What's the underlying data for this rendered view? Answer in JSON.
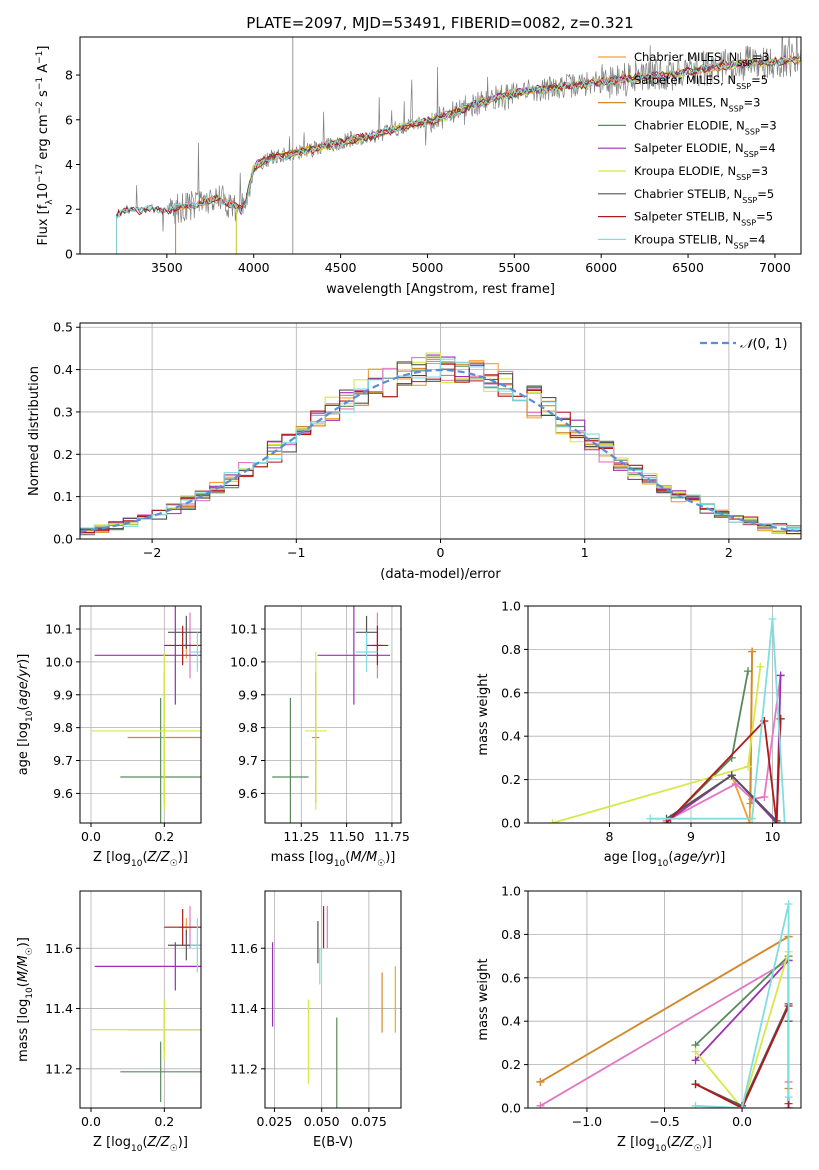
{
  "title": "PLATE=2097, MJD=53491, FIBERID=0082, z=0.321",
  "colors": {
    "Chabrier MILES": "#f0a030",
    "Salpeter MILES": "#e377c2",
    "Kroupa MILES": "#d08a30",
    "Chabrier ELODIE": "#5a8a5a",
    "Salpeter ELODIE": "#9b30b0",
    "Kroupa ELODIE": "#d6e84a",
    "Chabrier STELIB": "#555555",
    "Salpeter STELIB": "#b01a1a",
    "Kroupa STELIB": "#80dde0",
    "data": "#808080",
    "gauss": "#5b8dd8"
  },
  "chart_data": [
    {
      "id": "spectrum",
      "type": "line",
      "xlabel": "wavelength [Angstrom, rest frame]",
      "ylabel": "Flux [f_λ 10^-17 erg cm^-2 s^-1 A^-1]",
      "xlim": [
        3000,
        7150
      ],
      "ylim": [
        0,
        9.7
      ],
      "xticks": [
        3500,
        4000,
        4500,
        5000,
        5500,
        6000,
        6500,
        7000
      ],
      "yticks": [
        0,
        2,
        4,
        6,
        8
      ],
      "legend_position": "upper right",
      "legend": [
        {
          "label": "Chabrier MILES, N_SSP=3",
          "model": "Chabrier MILES"
        },
        {
          "label": "Salpeter MILES, N_SSP=5",
          "model": "Salpeter MILES"
        },
        {
          "label": "Kroupa MILES, N_SSP=3",
          "model": "Kroupa MILES"
        },
        {
          "label": "Chabrier ELODIE, N_SSP=3",
          "model": "Chabrier ELODIE"
        },
        {
          "label": "Salpeter ELODIE, N_SSP=4",
          "model": "Salpeter ELODIE"
        },
        {
          "label": "Kroupa ELODIE, N_SSP=3",
          "model": "Kroupa ELODIE"
        },
        {
          "label": "Chabrier STELIB, N_SSP=5",
          "model": "Chabrier STELIB"
        },
        {
          "label": "Salpeter STELIB, N_SSP=5",
          "model": "Salpeter STELIB"
        },
        {
          "label": "Kroupa STELIB, N_SSP=4",
          "model": "Kroupa STELIB"
        }
      ],
      "continuum": [
        [
          3210,
          1.7
        ],
        [
          3260,
          1.95
        ],
        [
          3400,
          2.0
        ],
        [
          3500,
          1.95
        ],
        [
          3560,
          2.05
        ],
        [
          3700,
          2.3
        ],
        [
          3800,
          2.5
        ],
        [
          3930,
          2.0
        ],
        [
          3960,
          2.5
        ],
        [
          4000,
          3.9
        ],
        [
          4100,
          4.3
        ],
        [
          4300,
          4.6
        ],
        [
          4500,
          5.0
        ],
        [
          4700,
          5.3
        ],
        [
          4900,
          5.8
        ],
        [
          5050,
          6.0
        ],
        [
          5150,
          6.3
        ],
        [
          5200,
          6.5
        ],
        [
          5400,
          7.0
        ],
        [
          5600,
          7.3
        ],
        [
          5800,
          7.5
        ],
        [
          6000,
          7.7
        ],
        [
          6200,
          7.9
        ],
        [
          6400,
          8.0
        ],
        [
          6600,
          8.3
        ],
        [
          6800,
          8.5
        ],
        [
          7000,
          8.6
        ],
        [
          7150,
          8.7
        ]
      ],
      "fit_start": {
        "Chabrier MILES": 3550,
        "Salpeter MILES": 3550,
        "Kroupa MILES": 3550,
        "Chabrier ELODIE": 3900,
        "Salpeter ELODIE": 3900,
        "Kroupa ELODIE": 3900,
        "Chabrier STELIB": 3210,
        "Salpeter STELIB": 3210,
        "Kroupa STELIB": 3210
      }
    },
    {
      "id": "residuals",
      "type": "histogram",
      "xlabel": "(data-model)/error",
      "ylabel": "Normed distribution",
      "xlim": [
        -2.5,
        2.5
      ],
      "ylim": [
        0,
        0.51
      ],
      "xticks": [
        -2,
        -1,
        0,
        1,
        2
      ],
      "yticks": [
        0.0,
        0.1,
        0.2,
        0.3,
        0.4,
        0.5
      ],
      "legend_position": "upper right",
      "gauss_label": "N(0,1)",
      "bin_width": 0.1
    },
    {
      "id": "age_vs_Z",
      "type": "errorbar",
      "xlabel": "Z [log10(Z/Z☉)]",
      "ylabel": "age  [log10(age/yr)]",
      "xlim": [
        -0.03,
        0.3
      ],
      "ylim": [
        9.51,
        10.17
      ],
      "xticks": [
        0.0,
        0.2
      ],
      "yticks": [
        9.6,
        9.7,
        9.8,
        9.9,
        10.0,
        10.1
      ],
      "points": [
        {
          "model": "Chabrier MILES",
          "x": 0.26,
          "y": 10.05,
          "xerr": 0.015,
          "yerr": 0.04
        },
        {
          "model": "Salpeter MILES",
          "x": 0.27,
          "y": 10.05,
          "xerr": 0.03,
          "yerr": 0.1
        },
        {
          "model": "Kroupa MILES",
          "x": 0.2,
          "y": 9.77,
          "xerr": 0.1,
          "yerr": 0.2
        },
        {
          "model": "Chabrier ELODIE",
          "x": 0.19,
          "y": 9.65,
          "xerr": 0.11,
          "yerr": 0.24
        },
        {
          "model": "Salpeter ELODIE",
          "x": 0.23,
          "y": 10.02,
          "xerr": 0.22,
          "yerr": 0.15
        },
        {
          "model": "Kroupa ELODIE",
          "x": 0.2,
          "y": 9.79,
          "xerr": 0.2,
          "yerr": 0.24
        },
        {
          "model": "Chabrier STELIB",
          "x": 0.26,
          "y": 10.09,
          "xerr": 0.05,
          "yerr": 0.05
        },
        {
          "model": "Salpeter STELIB",
          "x": 0.25,
          "y": 10.05,
          "xerr": 0.05,
          "yerr": 0.06
        },
        {
          "model": "Kroupa STELIB",
          "x": 0.29,
          "y": 10.03,
          "xerr": 0.02,
          "yerr": 0.06
        }
      ]
    },
    {
      "id": "age_vs_mass",
      "type": "errorbar",
      "xlabel": "mass [log10(M/M☉)]",
      "ylabel": "",
      "xlim": [
        11.05,
        11.8
      ],
      "ylim": [
        9.51,
        10.17
      ],
      "xticks": [
        11.25,
        11.5,
        11.75
      ],
      "yticks": [
        9.6,
        9.7,
        9.8,
        9.9,
        10.0,
        10.1
      ],
      "points": [
        {
          "model": "Chabrier MILES",
          "x": 11.67,
          "y": 10.05,
          "xerr": 0.03,
          "yerr": 0.04
        },
        {
          "model": "Salpeter MILES",
          "x": 11.67,
          "y": 10.05,
          "xerr": 0.03,
          "yerr": 0.1
        },
        {
          "model": "Kroupa MILES",
          "x": 11.33,
          "y": 9.77,
          "xerr": 0.02,
          "yerr": 0.2
        },
        {
          "model": "Chabrier ELODIE",
          "x": 11.19,
          "y": 9.65,
          "xerr": 0.1,
          "yerr": 0.24
        },
        {
          "model": "Salpeter ELODIE",
          "x": 11.54,
          "y": 10.02,
          "xerr": 0.2,
          "yerr": 0.15
        },
        {
          "model": "Kroupa ELODIE",
          "x": 11.33,
          "y": 9.79,
          "xerr": 0.06,
          "yerr": 0.24
        },
        {
          "model": "Chabrier STELIB",
          "x": 11.61,
          "y": 10.09,
          "xerr": 0.06,
          "yerr": 0.05
        },
        {
          "model": "Salpeter STELIB",
          "x": 11.67,
          "y": 10.05,
          "xerr": 0.06,
          "yerr": 0.06
        },
        {
          "model": "Kroupa STELIB",
          "x": 11.61,
          "y": 10.03,
          "xerr": 0.06,
          "yerr": 0.06
        }
      ]
    },
    {
      "id": "weight_vs_age",
      "type": "line",
      "xlabel": "age  [log10(age/yr)]",
      "ylabel": "mass weight",
      "xlim": [
        7.0,
        10.35
      ],
      "ylim": [
        0,
        1.0
      ],
      "xticks": [
        8,
        9,
        10
      ],
      "yticks": [
        0.0,
        0.2,
        0.4,
        0.6,
        0.8,
        1.0
      ],
      "series": [
        {
          "model": "Chabrier MILES",
          "points": [
            [
              9.5,
              0.22
            ],
            [
              9.72,
              0.0
            ],
            [
              9.75,
              0.79
            ]
          ]
        },
        {
          "model": "Salpeter MILES",
          "points": [
            [
              8.7,
              0.01
            ],
            [
              9.55,
              0.18
            ],
            [
              9.75,
              0.11
            ],
            [
              9.9,
              0.12
            ],
            [
              10.1,
              0.68
            ]
          ]
        },
        {
          "model": "Kroupa MILES",
          "points": [
            [
              9.73,
              0.09
            ],
            [
              9.75,
              0.79
            ]
          ]
        },
        {
          "model": "Chabrier ELODIE",
          "points": [
            [
              8.7,
              0.0
            ],
            [
              9.5,
              0.3
            ],
            [
              9.7,
              0.7
            ]
          ]
        },
        {
          "model": "Salpeter ELODIE",
          "points": [
            [
              8.75,
              0.02
            ],
            [
              9.5,
              0.22
            ],
            [
              10.05,
              0.0
            ],
            [
              10.1,
              0.68
            ]
          ]
        },
        {
          "model": "Kroupa ELODIE",
          "points": [
            [
              7.3,
              0.0
            ],
            [
              9.7,
              0.26
            ],
            [
              9.85,
              0.72
            ]
          ]
        },
        {
          "model": "Chabrier STELIB",
          "points": [
            [
              8.7,
              0.02
            ],
            [
              9.5,
              0.22
            ],
            [
              10.05,
              0.01
            ],
            [
              10.1,
              0.48
            ]
          ]
        },
        {
          "model": "Salpeter STELIB",
          "points": [
            [
              8.7,
              0.0
            ],
            [
              9.9,
              0.47
            ],
            [
              10.05,
              0.0
            ],
            [
              10.1,
              0.48
            ]
          ]
        },
        {
          "model": "Kroupa STELIB",
          "points": [
            [
              8.5,
              0.02
            ],
            [
              9.75,
              0.02
            ],
            [
              10.0,
              0.94
            ],
            [
              10.15,
              0.0
            ]
          ]
        }
      ]
    },
    {
      "id": "mass_vs_Z",
      "type": "errorbar",
      "xlabel": "Z [log10(Z/Z☉)]",
      "ylabel": "mass [log10(M/M☉)]",
      "xlim": [
        -0.03,
        0.3
      ],
      "ylim": [
        11.07,
        11.79
      ],
      "xticks": [
        0.0,
        0.2
      ],
      "yticks": [
        11.2,
        11.4,
        11.6
      ],
      "points": [
        {
          "model": "Chabrier MILES",
          "x": 0.26,
          "y": 11.67,
          "xerr": 0.015,
          "yerr": 0.03
        },
        {
          "model": "Salpeter MILES",
          "x": 0.27,
          "y": 11.67,
          "xerr": 0.03,
          "yerr": 0.07
        },
        {
          "model": "Kroupa MILES",
          "x": 0.2,
          "y": 11.33,
          "xerr": 0.1,
          "yerr": 0.07
        },
        {
          "model": "Chabrier ELODIE",
          "x": 0.19,
          "y": 11.19,
          "xerr": 0.11,
          "yerr": 0.1
        },
        {
          "model": "Salpeter ELODIE",
          "x": 0.23,
          "y": 11.54,
          "xerr": 0.22,
          "yerr": 0.08
        },
        {
          "model": "Kroupa ELODIE",
          "x": 0.2,
          "y": 11.33,
          "xerr": 0.2,
          "yerr": 0.1
        },
        {
          "model": "Chabrier STELIB",
          "x": 0.26,
          "y": 11.61,
          "xerr": 0.05,
          "yerr": 0.05
        },
        {
          "model": "Salpeter STELIB",
          "x": 0.25,
          "y": 11.67,
          "xerr": 0.05,
          "yerr": 0.06
        },
        {
          "model": "Kroupa STELIB",
          "x": 0.29,
          "y": 11.61,
          "xerr": 0.02,
          "yerr": 0.09
        }
      ]
    },
    {
      "id": "mass_vs_EBV",
      "type": "errorbar",
      "xlabel": "E(B-V)",
      "ylabel": "",
      "xlim": [
        0.02,
        0.092
      ],
      "ylim": [
        11.07,
        11.79
      ],
      "xticks": [
        0.025,
        0.05,
        0.075
      ],
      "yticks": [
        11.2,
        11.4,
        11.6
      ],
      "points": [
        {
          "model": "Salpeter ELODIE",
          "x": 0.024,
          "y": 11.48,
          "yerr": 0.14
        },
        {
          "model": "Kroupa ELODIE",
          "x": 0.043,
          "y": 11.29,
          "yerr": 0.14
        },
        {
          "model": "Chabrier STELIB",
          "x": 0.048,
          "y": 11.62,
          "yerr": 0.07
        },
        {
          "model": "Kroupa STELIB",
          "x": 0.049,
          "y": 11.54,
          "yerr": 0.06
        },
        {
          "model": "Salpeter STELIB",
          "x": 0.051,
          "y": 11.67,
          "yerr": 0.07
        },
        {
          "model": "Salpeter MILES",
          "x": 0.053,
          "y": 11.67,
          "yerr": 0.07
        },
        {
          "model": "Chabrier ELODIE",
          "x": 0.058,
          "y": 11.2,
          "yerr": 0.17
        },
        {
          "model": "Kroupa MILES",
          "x": 0.082,
          "y": 11.42,
          "yerr": 0.1
        },
        {
          "model": "Chabrier MILES",
          "x": 0.089,
          "y": 11.43,
          "yerr": 0.11
        }
      ]
    },
    {
      "id": "weight_vs_Z",
      "type": "line",
      "xlabel": "Z [log10(Z/Z☉)]",
      "ylabel": "mass weight",
      "xlim": [
        -1.38,
        0.38
      ],
      "ylim": [
        0,
        1.0
      ],
      "xticks": [
        -1.0,
        -0.5,
        0.0
      ],
      "yticks": [
        0.0,
        0.2,
        0.4,
        0.6,
        0.8,
        1.0
      ],
      "series": [
        {
          "model": "Chabrier MILES",
          "points": [
            [
              -1.3,
              0.12
            ],
            [
              0.3,
              0.79
            ]
          ]
        },
        {
          "model": "Salpeter MILES",
          "points": [
            [
              -1.3,
              0.01
            ],
            [
              0.3,
              0.68
            ],
            [
              0.3,
              0.12
            ]
          ]
        },
        {
          "model": "Kroupa MILES",
          "points": [
            [
              -1.3,
              0.12
            ],
            [
              0.3,
              0.79
            ],
            [
              0.3,
              0.09
            ]
          ]
        },
        {
          "model": "Chabrier ELODIE",
          "points": [
            [
              -0.3,
              0.29
            ],
            [
              0.3,
              0.7
            ],
            [
              0.3,
              0.0
            ]
          ]
        },
        {
          "model": "Salpeter ELODIE",
          "points": [
            [
              -0.3,
              0.22
            ],
            [
              0.3,
              0.68
            ],
            [
              0.3,
              0.02
            ]
          ]
        },
        {
          "model": "Kroupa ELODIE",
          "points": [
            [
              -0.3,
              0.26
            ],
            [
              0.0,
              0.0
            ],
            [
              0.3,
              0.72
            ]
          ]
        },
        {
          "model": "Chabrier STELIB",
          "points": [
            [
              -0.3,
              0.11
            ],
            [
              0.0,
              0.01
            ],
            [
              0.3,
              0.48
            ],
            [
              0.3,
              0.4
            ]
          ]
        },
        {
          "model": "Salpeter STELIB",
          "points": [
            [
              -0.3,
              0.11
            ],
            [
              0.0,
              0.0
            ],
            [
              0.3,
              0.47
            ],
            [
              0.3,
              0.0
            ]
          ]
        },
        {
          "model": "Kroupa STELIB",
          "points": [
            [
              -0.3,
              0.01
            ],
            [
              0.0,
              0.0
            ],
            [
              0.3,
              0.94
            ],
            [
              0.3,
              0.05
            ]
          ]
        }
      ]
    }
  ]
}
